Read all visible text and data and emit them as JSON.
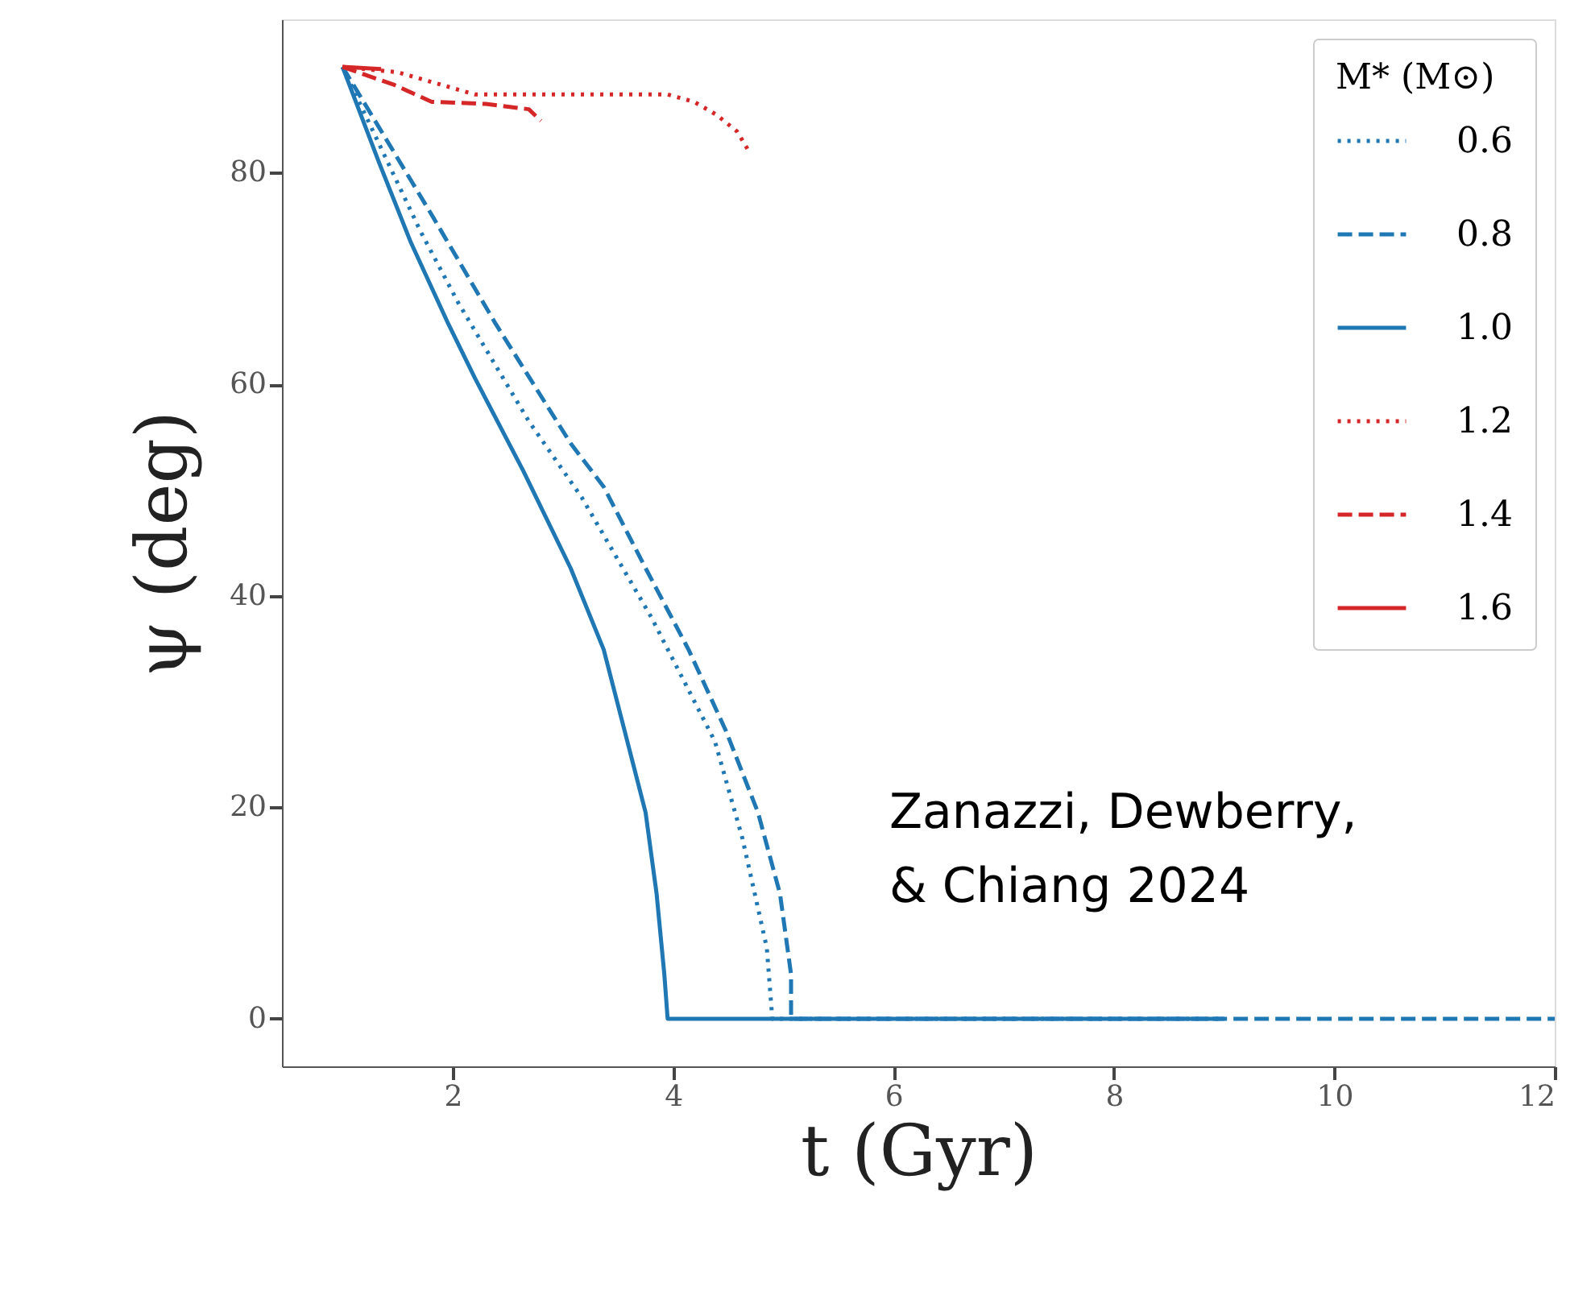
{
  "chart_data": {
    "type": "line",
    "xlabel": "t (Gyr)",
    "ylabel": "ψ (deg)",
    "legend_title": "M* (M⊙)",
    "xlim": [
      0.45,
      12
    ],
    "ylim": [
      -4.5,
      94.5
    ],
    "xticks": [
      2,
      4,
      6,
      8,
      10,
      12
    ],
    "yticks": [
      0,
      20,
      40,
      60,
      80
    ],
    "grid": false,
    "legend": "top right",
    "marker": "none",
    "series": [
      {
        "name": "0.6",
        "color": "#1f77b4",
        "line_style": "dotted",
        "x": [
          1,
          1.71,
          2.05,
          2.69,
          3.17,
          3.8,
          4.38,
          4.63,
          4.85,
          4.9,
          9
        ],
        "values": [
          90,
          74.4,
          67.7,
          56.5,
          49.3,
          38,
          26.2,
          17,
          6.7,
          0,
          0
        ]
      },
      {
        "name": "0.8",
        "color": "#1f77b4",
        "line_style": "dashed",
        "x": [
          1,
          1.81,
          2.39,
          3.07,
          3.37,
          3.75,
          4.14,
          4.48,
          4.77,
          4.97,
          5.07,
          5.07,
          12
        ],
        "values": [
          90,
          76,
          65.7,
          54.4,
          50.3,
          42.6,
          34.9,
          27.2,
          19.5,
          11.8,
          4.2,
          0,
          0
        ]
      },
      {
        "name": "1.0",
        "color": "#1f77b4",
        "line_style": "solid",
        "x": [
          1,
          1.33,
          1.62,
          1.96,
          2.2,
          2.64,
          3.07,
          3.37,
          3.56,
          3.75,
          3.85,
          3.92,
          3.95,
          9
        ],
        "values": [
          90,
          81,
          73.4,
          65.7,
          60.6,
          51.8,
          42.6,
          34.9,
          27.2,
          19.5,
          11.8,
          4.2,
          0,
          0
        ]
      },
      {
        "name": "1.2",
        "color": "#d62728",
        "line_style": "dotted",
        "x": [
          1,
          1.5,
          2.2,
          3.0,
          3.95,
          4.19,
          4.39,
          4.58,
          4.7
        ],
        "values": [
          90,
          89.5,
          87.4,
          87.4,
          87.4,
          86.7,
          85.5,
          83.9,
          81.8
        ]
      },
      {
        "name": "1.4",
        "color": "#d62728",
        "line_style": "dashed",
        "x": [
          1,
          1.47,
          1.81,
          2.3,
          2.69,
          2.8
        ],
        "values": [
          90,
          88.3,
          86.7,
          86.5,
          86,
          84.9
        ]
      },
      {
        "name": "1.6",
        "color": "#d62728",
        "line_style": "solid",
        "x": [
          1,
          1.35
        ],
        "values": [
          90,
          89.8
        ]
      }
    ],
    "annotations": [
      "Zanazzi, Dewberry,\n& Chiang 2024"
    ]
  }
}
